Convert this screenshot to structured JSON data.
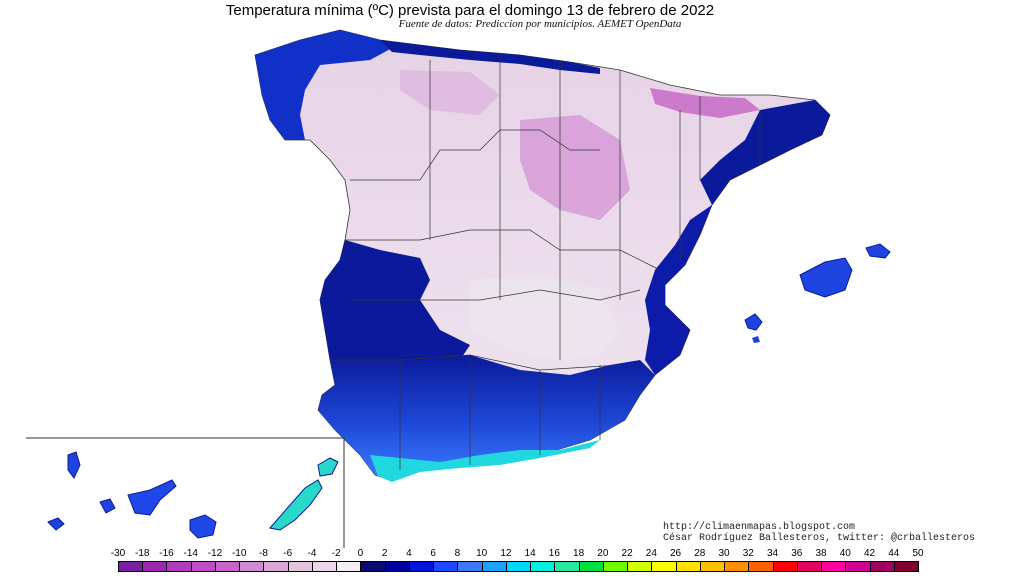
{
  "header": {
    "title": "Temperatura mínima (ºC) prevista para el domingo 13 de febrero de 2022",
    "subtitle": "Fuente de datos: Prediccion por municipios. AEMET OpenData"
  },
  "credit": {
    "url": "http://climaenmapas.blogspot.com",
    "author": "César Rodríguez Ballesteros, twitter: @crballesteros"
  },
  "legend": {
    "unit": "ºC",
    "labels": [
      "-30",
      "-18",
      "-16",
      "-14",
      "-12",
      "-10",
      "-8",
      "-6",
      "-4",
      "-2",
      "0",
      "2",
      "4",
      "6",
      "8",
      "10",
      "12",
      "14",
      "16",
      "18",
      "20",
      "22",
      "24",
      "26",
      "28",
      "30",
      "32",
      "34",
      "36",
      "38",
      "40",
      "42",
      "44",
      "50"
    ],
    "colors": [
      "#7b1fa2",
      "#9c27b0",
      "#b03bbb",
      "#c04cc6",
      "#c865c8",
      "#d28bd2",
      "#d9a6d6",
      "#e2c4e0",
      "#ead8e8",
      "#f4eef4",
      "#0a0a70",
      "#0000a0",
      "#0014d8",
      "#1e48ff",
      "#3c78ff",
      "#1ea0ff",
      "#00d8ff",
      "#00f0e0",
      "#28e8a0",
      "#00e040",
      "#70ff00",
      "#d0ff00",
      "#ffff00",
      "#ffe000",
      "#ffc000",
      "#ff9000",
      "#ff6000",
      "#ff0000",
      "#e00060",
      "#ff00a0",
      "#d00090",
      "#a00060",
      "#800030"
    ]
  },
  "map": {
    "region": "Spain",
    "inset": "Canary Islands",
    "colors": {
      "very_cold": "#d8b0d8",
      "cold": "#e9dbe9",
      "near_zero": "#f2eef2",
      "mild": "#1e3ed8",
      "dark_blue": "#0a1a9a",
      "cyan": "#20d8d8",
      "sea": "#ffffff"
    }
  }
}
